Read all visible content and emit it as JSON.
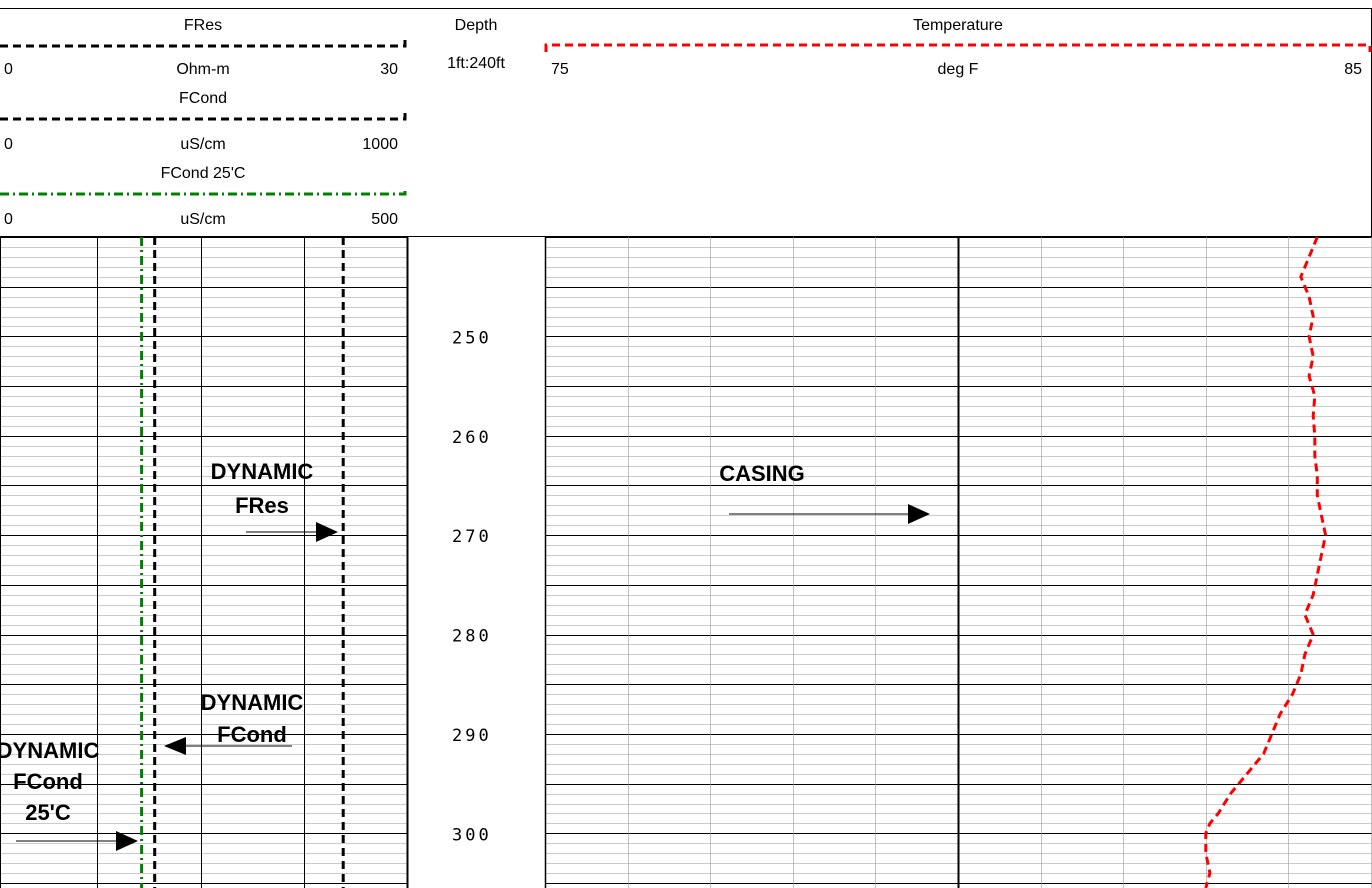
{
  "header": {
    "fres": {
      "title": "FRes",
      "min": "0",
      "unit": "Ohm-m",
      "max": "30",
      "color": "#000000"
    },
    "fcond": {
      "title": "FCond",
      "min": "0",
      "unit": "uS/cm",
      "max": "1000",
      "color": "#000000"
    },
    "fcond25": {
      "title": "FCond 25'C",
      "min": "0",
      "unit": "uS/cm",
      "max": "500",
      "color": "#008000"
    },
    "depth": {
      "title": "Depth",
      "scale": "1ft:240ft"
    },
    "temperature": {
      "title": "Temperature",
      "min": "75",
      "unit": "deg F",
      "max": "85",
      "color": "#ff0000"
    }
  },
  "annotations": {
    "dynamic_fres": [
      "DYNAMIC",
      "FRes"
    ],
    "dynamic_fcond": [
      "DYNAMIC",
      "FCond"
    ],
    "dynamic_fcond25": [
      "DYNAMIC",
      "FCond",
      "25'C"
    ],
    "casing": "CASING"
  },
  "chart_data": {
    "type": "line",
    "depth_range_ft": [
      240,
      305.5
    ],
    "depth_labels": [
      "250",
      "260",
      "270",
      "280",
      "290",
      "300"
    ],
    "series": [
      {
        "name": "FRes",
        "unit": "Ohm-m",
        "range": [
          0,
          30
        ],
        "color": "#000000",
        "style": "dashed",
        "depth": [
          240,
          305.5
        ],
        "values": [
          25.3,
          25.3
        ]
      },
      {
        "name": "FCond",
        "unit": "uS/cm",
        "range": [
          0,
          1000
        ],
        "color": "#000000",
        "style": "dashed",
        "depth": [
          240,
          305.5
        ],
        "values": [
          380,
          380
        ]
      },
      {
        "name": "FCond 25'C",
        "unit": "uS/cm",
        "range": [
          0,
          500
        ],
        "color": "#008000",
        "style": "dash-dot",
        "depth": [
          240,
          305.5
        ],
        "values": [
          174,
          174
        ]
      },
      {
        "name": "Temperature",
        "unit": "deg F",
        "range": [
          75,
          85
        ],
        "color": "#ff0000",
        "style": "dashed",
        "depth": [
          240,
          242,
          244,
          246,
          248,
          250,
          252,
          254,
          256,
          258,
          260,
          262,
          264,
          266,
          268,
          270,
          272,
          274,
          276,
          278,
          280,
          282,
          284,
          286,
          288,
          290,
          292,
          294,
          296,
          298,
          299,
          300,
          302,
          304,
          305.5
        ],
        "values": [
          84.35,
          84.25,
          84.15,
          84.25,
          84.3,
          84.25,
          84.3,
          84.25,
          84.32,
          84.3,
          84.32,
          84.32,
          84.35,
          84.35,
          84.4,
          84.45,
          84.4,
          84.35,
          84.3,
          84.2,
          84.3,
          84.2,
          84.15,
          84.05,
          83.9,
          83.8,
          83.7,
          83.5,
          83.3,
          83.15,
          83.05,
          83.0,
          83.0,
          83.05,
          83.0
        ]
      }
    ]
  }
}
